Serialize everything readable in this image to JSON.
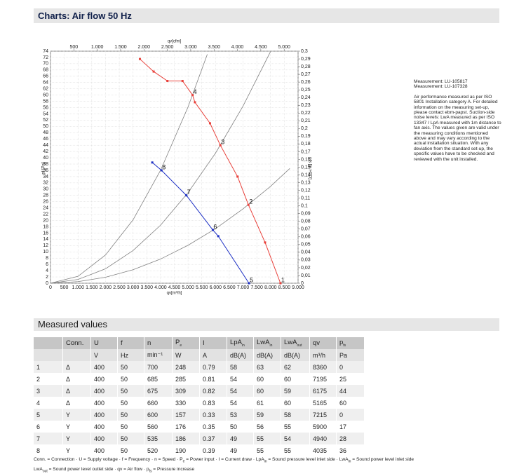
{
  "header": {
    "title": "Charts: Air flow 50 Hz"
  },
  "chart_data": {
    "type": "line",
    "x_label": "qv[m³/h]",
    "x2_label": "qv[cfm]",
    "y_label": "pf [Pa]",
    "y2_label": "pfs [in H2O]",
    "xlim": [
      0,
      9000
    ],
    "xticks": [
      0,
      500,
      {
        "value": 1000,
        "label": "1.000"
      },
      {
        "value": 1500,
        "label": "1.500"
      },
      {
        "value": 2000,
        "label": "2.000"
      },
      {
        "value": 2500,
        "label": "2.500"
      },
      {
        "value": 3000,
        "label": "3.000"
      },
      {
        "value": 3500,
        "label": "3.500"
      },
      {
        "value": 4000,
        "label": "4.000"
      },
      {
        "value": 4500,
        "label": "4.500"
      },
      {
        "value": 5000,
        "label": "5.000"
      },
      {
        "value": 5500,
        "label": "5.500"
      },
      {
        "value": 6000,
        "label": "6.000"
      },
      {
        "value": 6500,
        "label": "6.500"
      },
      {
        "value": 7000,
        "label": "7.000"
      },
      {
        "value": 7500,
        "label": "7.500"
      },
      {
        "value": 8000,
        "label": "8.000"
      },
      {
        "value": 8500,
        "label": "8.500"
      },
      {
        "value": 9000,
        "label": "9.000"
      }
    ],
    "x2lim": [
      0,
      5297
    ],
    "x2ticks": [
      500,
      {
        "value": 1000,
        "label": "1.000"
      },
      {
        "value": 1500,
        "label": "1.500"
      },
      {
        "value": 2000,
        "label": "2.000"
      },
      {
        "value": 2500,
        "label": "2.500"
      },
      {
        "value": 3000,
        "label": "3.000"
      },
      {
        "value": 3500,
        "label": "3.500"
      },
      {
        "value": 4000,
        "label": "4.000"
      },
      {
        "value": 4500,
        "label": "4.500"
      },
      {
        "value": 5000,
        "label": "5.000"
      }
    ],
    "ylim": [
      0,
      74
    ],
    "yticks": [
      0,
      2,
      4,
      6,
      8,
      10,
      12,
      14,
      16,
      18,
      20,
      22,
      24,
      26,
      28,
      30,
      32,
      34,
      36,
      38,
      40,
      42,
      44,
      46,
      48,
      50,
      52,
      54,
      56,
      58,
      60,
      62,
      64,
      66,
      68,
      70,
      72,
      74
    ],
    "y2lim": [
      0,
      0.3
    ],
    "y2ticks": [
      0,
      {
        "value": 0.01,
        "label": "0,01"
      },
      {
        "value": 0.02,
        "label": "0,02"
      },
      {
        "value": 0.03,
        "label": "0,03"
      },
      {
        "value": 0.04,
        "label": "0,04"
      },
      {
        "value": 0.05,
        "label": "0,05"
      },
      {
        "value": 0.06,
        "label": "0,06"
      },
      {
        "value": 0.07,
        "label": "0,07"
      },
      {
        "value": 0.08,
        "label": "0,08"
      },
      {
        "value": 0.09,
        "label": "0,09"
      },
      {
        "value": 0.1,
        "label": "0,1"
      },
      {
        "value": 0.11,
        "label": "0,11"
      },
      {
        "value": 0.12,
        "label": "0,12"
      },
      {
        "value": 0.13,
        "label": "0,13"
      },
      {
        "value": 0.14,
        "label": "0,14"
      },
      {
        "value": 0.15,
        "label": "0,15"
      },
      {
        "value": 0.16,
        "label": "0,16"
      },
      {
        "value": 0.17,
        "label": "0,17"
      },
      {
        "value": 0.18,
        "label": "0,18"
      },
      {
        "value": 0.19,
        "label": "0,19"
      },
      {
        "value": 0.2,
        "label": "0,2"
      },
      {
        "value": 0.21,
        "label": "0,21"
      },
      {
        "value": 0.22,
        "label": "0,22"
      },
      {
        "value": 0.23,
        "label": "0,23"
      },
      {
        "value": 0.24,
        "label": "0,24"
      },
      {
        "value": 0.25,
        "label": "0,25"
      },
      {
        "value": 0.26,
        "label": "0,26"
      },
      {
        "value": 0.27,
        "label": "0,27"
      },
      {
        "value": 0.28,
        "label": "0,28"
      },
      {
        "value": 0.29,
        "label": "0,29"
      },
      {
        "value": 0.3,
        "label": "0,3"
      }
    ],
    "grid": true,
    "series": [
      {
        "color": "#808080",
        "markers": false,
        "x": [
          0,
          1000,
          2000,
          3000,
          4000,
          5000,
          5700
        ],
        "values": [
          0,
          2.2,
          9,
          20.2,
          36,
          56.2,
          73
        ]
      },
      {
        "color": "#808080",
        "markers": false,
        "x": [
          0,
          1000,
          2000,
          3000,
          4000,
          5000,
          6000,
          7000,
          8000
        ],
        "values": [
          0,
          1.2,
          4.6,
          10.4,
          18.5,
          28.9,
          41.5,
          56.5,
          73.9
        ]
      },
      {
        "color": "#808080",
        "markers": false,
        "x": [
          0,
          1000,
          2000,
          3000,
          4000,
          5000,
          6000,
          7000,
          8000,
          8700
        ],
        "values": [
          0,
          0.5,
          1.9,
          4.3,
          7.7,
          12.1,
          17.4,
          23.7,
          30.9,
          36.6
        ]
      },
      {
        "color": "#e8403a",
        "markers": true,
        "x": [
          3250,
          3750,
          4250,
          4800,
          5165,
          5250,
          5800,
          6175,
          6800,
          7195,
          7800,
          8360
        ],
        "values": [
          71.5,
          67.5,
          64.5,
          64.5,
          60,
          57.7,
          51,
          44,
          34,
          25,
          13,
          0
        ]
      },
      {
        "color": "#1c2fc4",
        "markers": true,
        "x": [
          3700,
          4035,
          4940,
          5900,
          6100,
          7215
        ],
        "values": [
          38.5,
          36,
          28,
          17,
          15,
          0
        ]
      }
    ],
    "annotations": [
      {
        "text": "1",
        "x": 8360,
        "y": 0
      },
      {
        "text": "2",
        "x": 7195,
        "y": 25
      },
      {
        "text": "3",
        "x": 6175,
        "y": 44
      },
      {
        "text": "4",
        "x": 5165,
        "y": 60
      },
      {
        "text": "5",
        "x": 7215,
        "y": 0
      },
      {
        "text": "6",
        "x": 5900,
        "y": 17
      },
      {
        "text": "7",
        "x": 4940,
        "y": 28
      },
      {
        "text": "8",
        "x": 4035,
        "y": 36
      }
    ]
  },
  "notes": [
    "Measurement: LU-105817",
    "Measurement: LU-107328",
    "Air performance measured as per ISO 5801 Installation category A. For detailed information on the measuring set-up, please contact ebm-papst. Suction-side noise levels: LwA measured as per ISO 13347 / LpA measured with 1m distance to fan axis. The values given are valid under the measuring conditions mentioned above and may vary according to the actual installation situation. With any deviation from the standard set-up, the specific values have to be checked and reviewed with the unit installed."
  ],
  "table": {
    "title": "Measured values",
    "header": [
      [
        "Conn."
      ],
      [
        "U"
      ],
      [
        "f"
      ],
      [
        "n"
      ],
      [
        "P",
        "e"
      ],
      [
        "I"
      ],
      [
        "LpA",
        "in"
      ],
      [
        "LwA",
        "in"
      ],
      [
        "LwA",
        "out"
      ],
      [
        "qv"
      ],
      [
        "p",
        "fs"
      ]
    ],
    "units": [
      "V",
      "Hz",
      "min⁻¹",
      "W",
      "A",
      "dB(A)",
      "dB(A)",
      "dB(A)",
      "m³/h",
      "Pa"
    ],
    "rows": [
      [
        "1",
        "Δ",
        "400",
        "50",
        "700",
        "248",
        "0.79",
        "58",
        "63",
        "62",
        "8360",
        "0"
      ],
      [
        "2",
        "Δ",
        "400",
        "50",
        "685",
        "285",
        "0.81",
        "54",
        "60",
        "60",
        "7195",
        "25"
      ],
      [
        "3",
        "Δ",
        "400",
        "50",
        "675",
        "309",
        "0.82",
        "54",
        "60",
        "59",
        "6175",
        "44"
      ],
      [
        "4",
        "Δ",
        "400",
        "50",
        "660",
        "330",
        "0.83",
        "54",
        "61",
        "60",
        "5165",
        "60"
      ],
      [
        "5",
        "Y",
        "400",
        "50",
        "600",
        "157",
        "0.33",
        "53",
        "59",
        "58",
        "7215",
        "0"
      ],
      [
        "6",
        "Y",
        "400",
        "50",
        "560",
        "176",
        "0.35",
        "50",
        "56",
        "55",
        "5900",
        "17"
      ],
      [
        "7",
        "Y",
        "400",
        "50",
        "535",
        "186",
        "0.37",
        "49",
        "55",
        "54",
        "4940",
        "28"
      ],
      [
        "8",
        "Y",
        "400",
        "50",
        "520",
        "190",
        "0.39",
        "49",
        "55",
        "55",
        "4035",
        "36"
      ]
    ]
  },
  "footnote": [
    [
      "Conn. = Connection · U = Supply voltage · f = Frequency · n = Speed · P",
      "e",
      " = Power input · I = Current draw · LpA",
      "in",
      " = Sound pressure level inlet side · LwA",
      "in",
      " = Sound power level inlet side"
    ],
    [
      "LwA",
      "out",
      " = Sound power level outlet side · qv = Air flow · p",
      "fs",
      " = Pressure increase"
    ]
  ]
}
